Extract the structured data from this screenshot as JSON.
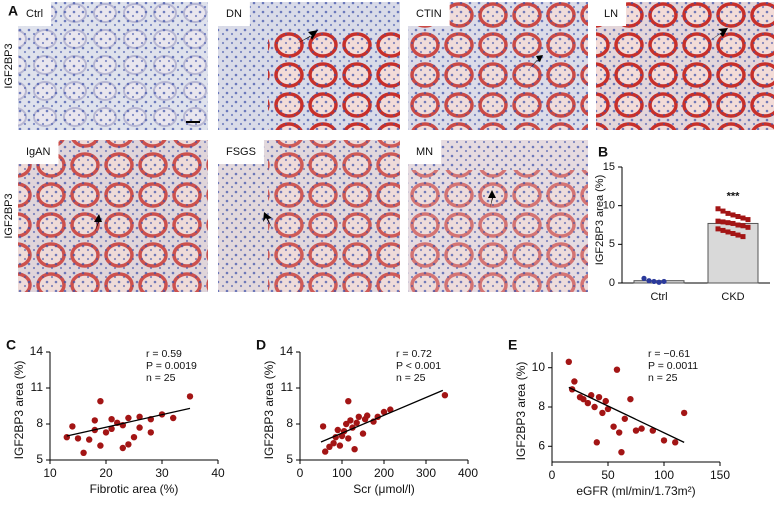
{
  "figure": {
    "panel_a": "A",
    "row_labels": [
      "IGF2BP3",
      "IGF2BP3"
    ],
    "micrographs": [
      "Ctrl",
      "DN",
      "CTIN",
      "LN",
      "IgAN",
      "FSGS",
      "MN"
    ]
  },
  "chart_data": [
    {
      "type": "bar",
      "label": "B",
      "ylabel": "IGF2BP3 area (%)",
      "categories": [
        "Ctrl",
        "CKD"
      ],
      "values": [
        0.3,
        7.7
      ],
      "errors": [
        0.1,
        0.3
      ],
      "colors": [
        "#2b3a9b",
        "#a31515"
      ],
      "bar_color": "#d9d9d9",
      "ylim": [
        0,
        15
      ],
      "yticks": [
        0,
        5,
        10,
        15
      ],
      "annotation": "***",
      "points": [
        [
          0.6,
          0.3,
          0.2,
          0.1,
          0.2
        ],
        [
          9.6,
          9.3,
          9.0,
          8.8,
          8.6,
          8.4,
          8.2,
          8.0,
          7.9,
          7.8,
          7.7,
          7.5,
          7.4,
          7.2,
          7.0,
          6.8,
          6.6,
          6.4,
          6.2,
          6.0
        ]
      ]
    },
    {
      "type": "scatter",
      "label": "C",
      "xlabel": "Fibrotic area (%)",
      "ylabel": "IGF2BP3 area (%)",
      "color": "#a31515",
      "xlim": [
        10,
        40
      ],
      "xticks": [
        10,
        20,
        30,
        40
      ],
      "ylim": [
        5,
        14
      ],
      "yticks": [
        5,
        8,
        11,
        14
      ],
      "annotations": [
        "r = 0.59",
        "P = 0.0019",
        "n = 25"
      ],
      "x": [
        13,
        14,
        15,
        16,
        17,
        18,
        18,
        19,
        19,
        20,
        21,
        21,
        22,
        23,
        23,
        24,
        24,
        25,
        26,
        26,
        28,
        28,
        30,
        32,
        35
      ],
      "values": [
        6.9,
        7.8,
        6.8,
        5.6,
        6.7,
        7.5,
        8.3,
        9.9,
        6.2,
        7.3,
        7.6,
        8.4,
        8.1,
        7.9,
        6.0,
        8.5,
        6.3,
        6.9,
        8.6,
        7.7,
        8.4,
        7.3,
        8.8,
        8.5,
        10.3
      ],
      "fit": {
        "x": [
          13,
          35
        ],
        "values": [
          7.0,
          9.3
        ]
      }
    },
    {
      "type": "scatter",
      "label": "D",
      "xlabel": "Scr (μmol/l)",
      "ylabel": "IGF2BP3 area (%)",
      "color": "#a31515",
      "xlim": [
        0,
        400
      ],
      "xticks": [
        0,
        100,
        200,
        300,
        400
      ],
      "ylim": [
        5,
        14
      ],
      "yticks": [
        5,
        8,
        11,
        14
      ],
      "annotations": [
        "r = 0.72",
        "P < 0.001",
        "n = 25"
      ],
      "x": [
        55,
        60,
        70,
        80,
        85,
        90,
        95,
        100,
        105,
        110,
        115,
        115,
        120,
        125,
        130,
        135,
        140,
        150,
        155,
        160,
        175,
        185,
        200,
        215,
        345
      ],
      "values": [
        7.8,
        5.7,
        6.1,
        6.4,
        6.9,
        7.5,
        6.2,
        7.0,
        7.4,
        8.0,
        9.9,
        6.8,
        8.3,
        7.7,
        5.9,
        8.1,
        8.6,
        7.2,
        8.4,
        8.7,
        8.2,
        8.6,
        9.0,
        9.2,
        10.4
      ],
      "fit": {
        "x": [
          50,
          340
        ],
        "values": [
          6.5,
          10.8
        ]
      }
    },
    {
      "type": "scatter",
      "label": "E",
      "xlabel": "eGFR (ml/min/1.73m²)",
      "ylabel": "IGF2BP3 area (%)",
      "color": "#a31515",
      "xlim": [
        0,
        150
      ],
      "xticks": [
        0,
        50,
        100,
        150
      ],
      "ylim": [
        5.2,
        10.8
      ],
      "yticks": [
        6,
        8,
        10
      ],
      "annotations": [
        "r = −0.61",
        "P = 0.0011",
        "n = 25"
      ],
      "x": [
        15,
        18,
        20,
        25,
        28,
        32,
        35,
        38,
        40,
        42,
        45,
        48,
        50,
        55,
        58,
        60,
        62,
        65,
        70,
        75,
        80,
        90,
        100,
        110,
        118
      ],
      "values": [
        10.3,
        8.9,
        9.3,
        8.5,
        8.4,
        8.2,
        8.6,
        8.0,
        6.2,
        8.5,
        7.7,
        8.3,
        7.9,
        7.0,
        9.9,
        6.7,
        5.7,
        7.4,
        8.4,
        6.8,
        6.9,
        6.8,
        6.3,
        6.2,
        7.7
      ],
      "fit": {
        "x": [
          15,
          118
        ],
        "values": [
          9.0,
          6.2
        ]
      }
    }
  ]
}
